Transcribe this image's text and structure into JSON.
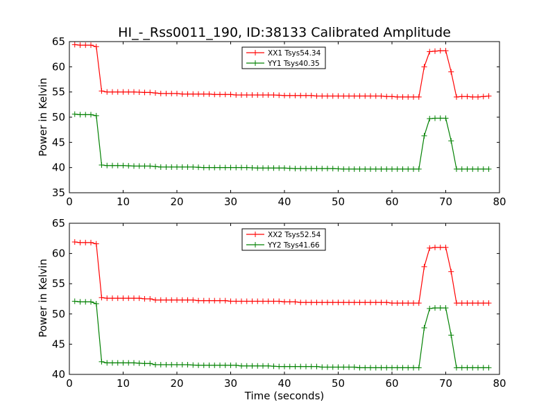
{
  "chart_data": [
    {
      "type": "line",
      "title": "HI_-_Rss0011_190, ID:38133 Calibrated Amplitude",
      "xlabel": "",
      "ylabel": "Power in Kelvin",
      "xlim": [
        0,
        80
      ],
      "ylim": [
        35,
        65
      ],
      "xticks": [
        "0",
        "10",
        "20",
        "30",
        "40",
        "50",
        "60",
        "70",
        "80"
      ],
      "yticks": [
        "35",
        "40",
        "45",
        "50",
        "55",
        "60",
        "65"
      ],
      "legend_position": "top-center",
      "series": [
        {
          "name": "XX1 Tsys54.34",
          "color": "#ff0000",
          "x": [
            1,
            2,
            3,
            4,
            5,
            6,
            7,
            8,
            9,
            10,
            11,
            12,
            13,
            14,
            15,
            16,
            17,
            18,
            19,
            20,
            21,
            22,
            23,
            24,
            25,
            26,
            27,
            28,
            29,
            30,
            31,
            32,
            33,
            34,
            35,
            36,
            37,
            38,
            39,
            40,
            41,
            42,
            43,
            44,
            45,
            46,
            47,
            48,
            49,
            50,
            51,
            52,
            53,
            54,
            55,
            56,
            57,
            58,
            59,
            60,
            61,
            62,
            63,
            64,
            65,
            66,
            67,
            68,
            69,
            70,
            71,
            72,
            73,
            74,
            75,
            76,
            77,
            78
          ],
          "y": [
            64.4,
            64.3,
            64.3,
            64.3,
            64.0,
            55.2,
            55.0,
            55.0,
            55.0,
            55.0,
            55.0,
            55.0,
            54.95,
            54.9,
            54.9,
            54.8,
            54.7,
            54.7,
            54.7,
            54.7,
            54.6,
            54.6,
            54.6,
            54.6,
            54.6,
            54.6,
            54.5,
            54.5,
            54.5,
            54.5,
            54.4,
            54.4,
            54.4,
            54.4,
            54.4,
            54.4,
            54.4,
            54.4,
            54.35,
            54.3,
            54.3,
            54.3,
            54.3,
            54.3,
            54.3,
            54.2,
            54.2,
            54.2,
            54.2,
            54.2,
            54.2,
            54.2,
            54.2,
            54.2,
            54.2,
            54.2,
            54.2,
            54.2,
            54.1,
            54.1,
            54.0,
            54.0,
            54.0,
            54.0,
            54.0,
            60.0,
            63.0,
            63.1,
            63.2,
            63.2,
            59.0,
            54.0,
            54.1,
            54.1,
            54.0,
            54.0,
            54.1,
            54.2
          ]
        },
        {
          "name": "YY1 Tsys40.35",
          "color": "#008000",
          "x": [
            1,
            2,
            3,
            4,
            5,
            6,
            7,
            8,
            9,
            10,
            11,
            12,
            13,
            14,
            15,
            16,
            17,
            18,
            19,
            20,
            21,
            22,
            23,
            24,
            25,
            26,
            27,
            28,
            29,
            30,
            31,
            32,
            33,
            34,
            35,
            36,
            37,
            38,
            39,
            40,
            41,
            42,
            43,
            44,
            45,
            46,
            47,
            48,
            49,
            50,
            51,
            52,
            53,
            54,
            55,
            56,
            57,
            58,
            59,
            60,
            61,
            62,
            63,
            64,
            65,
            66,
            67,
            68,
            69,
            70,
            71,
            72,
            73,
            74,
            75,
            76,
            77,
            78
          ],
          "y": [
            50.6,
            50.5,
            50.5,
            50.5,
            50.3,
            40.5,
            40.4,
            40.4,
            40.4,
            40.4,
            40.35,
            40.3,
            40.3,
            40.3,
            40.3,
            40.2,
            40.1,
            40.1,
            40.1,
            40.1,
            40.1,
            40.1,
            40.1,
            40.05,
            40.0,
            40.0,
            40.0,
            40.0,
            40.0,
            40.0,
            40.0,
            40.0,
            40.0,
            39.95,
            39.9,
            39.9,
            39.9,
            39.9,
            39.9,
            39.9,
            39.85,
            39.8,
            39.8,
            39.8,
            39.8,
            39.8,
            39.8,
            39.8,
            39.8,
            39.75,
            39.7,
            39.7,
            39.7,
            39.7,
            39.7,
            39.7,
            39.7,
            39.7,
            39.7,
            39.7,
            39.7,
            39.7,
            39.7,
            39.7,
            39.7,
            46.3,
            49.7,
            49.8,
            49.8,
            49.8,
            45.3,
            39.7,
            39.7,
            39.7,
            39.7,
            39.7,
            39.7,
            39.7
          ]
        }
      ]
    },
    {
      "type": "line",
      "title": "",
      "xlabel": "Time (seconds)",
      "ylabel": "Power in Kelvin",
      "xlim": [
        0,
        80
      ],
      "ylim": [
        40,
        65
      ],
      "xticks": [
        "0",
        "10",
        "20",
        "30",
        "40",
        "50",
        "60",
        "70",
        "80"
      ],
      "yticks": [
        "40",
        "45",
        "50",
        "55",
        "60",
        "65"
      ],
      "legend_position": "top-center",
      "series": [
        {
          "name": "XX2 Tsys52.54",
          "color": "#ff0000",
          "x": [
            1,
            2,
            3,
            4,
            5,
            6,
            7,
            8,
            9,
            10,
            11,
            12,
            13,
            14,
            15,
            16,
            17,
            18,
            19,
            20,
            21,
            22,
            23,
            24,
            25,
            26,
            27,
            28,
            29,
            30,
            31,
            32,
            33,
            34,
            35,
            36,
            37,
            38,
            39,
            40,
            41,
            42,
            43,
            44,
            45,
            46,
            47,
            48,
            49,
            50,
            51,
            52,
            53,
            54,
            55,
            56,
            57,
            58,
            59,
            60,
            61,
            62,
            63,
            64,
            65,
            66,
            67,
            68,
            69,
            70,
            71,
            72,
            73,
            74,
            75,
            76,
            77,
            78
          ],
          "y": [
            61.9,
            61.8,
            61.8,
            61.8,
            61.6,
            52.7,
            52.6,
            52.6,
            52.6,
            52.6,
            52.6,
            52.6,
            52.6,
            52.5,
            52.5,
            52.3,
            52.3,
            52.3,
            52.3,
            52.3,
            52.3,
            52.3,
            52.3,
            52.2,
            52.2,
            52.2,
            52.2,
            52.2,
            52.2,
            52.1,
            52.1,
            52.1,
            52.1,
            52.1,
            52.1,
            52.1,
            52.1,
            52.1,
            52.1,
            52.0,
            52.0,
            52.0,
            51.9,
            51.9,
            51.9,
            51.9,
            51.9,
            51.9,
            51.9,
            51.9,
            51.9,
            51.9,
            51.9,
            51.9,
            51.9,
            51.9,
            51.9,
            51.9,
            51.9,
            51.8,
            51.8,
            51.8,
            51.8,
            51.8,
            51.8,
            57.8,
            60.9,
            61.0,
            61.0,
            61.0,
            57.0,
            51.8,
            51.8,
            51.8,
            51.8,
            51.8,
            51.8,
            51.8
          ]
        },
        {
          "name": "YY2 Tsys41.66",
          "color": "#008000",
          "x": [
            1,
            2,
            3,
            4,
            5,
            6,
            7,
            8,
            9,
            10,
            11,
            12,
            13,
            14,
            15,
            16,
            17,
            18,
            19,
            20,
            21,
            22,
            23,
            24,
            25,
            26,
            27,
            28,
            29,
            30,
            31,
            32,
            33,
            34,
            35,
            36,
            37,
            38,
            39,
            40,
            41,
            42,
            43,
            44,
            45,
            46,
            47,
            48,
            49,
            50,
            51,
            52,
            53,
            54,
            55,
            56,
            57,
            58,
            59,
            60,
            61,
            62,
            63,
            64,
            65,
            66,
            67,
            68,
            69,
            70,
            71,
            72,
            73,
            74,
            75,
            76,
            77,
            78
          ],
          "y": [
            52.1,
            52.0,
            52.0,
            52.0,
            51.7,
            42.1,
            41.9,
            41.9,
            41.9,
            41.9,
            41.9,
            41.9,
            41.85,
            41.8,
            41.8,
            41.6,
            41.6,
            41.6,
            41.6,
            41.6,
            41.6,
            41.6,
            41.55,
            41.5,
            41.5,
            41.5,
            41.5,
            41.5,
            41.5,
            41.5,
            41.5,
            41.4,
            41.4,
            41.4,
            41.4,
            41.4,
            41.4,
            41.35,
            41.3,
            41.3,
            41.3,
            41.3,
            41.3,
            41.3,
            41.3,
            41.3,
            41.2,
            41.2,
            41.2,
            41.2,
            41.2,
            41.2,
            41.2,
            41.1,
            41.1,
            41.1,
            41.1,
            41.1,
            41.1,
            41.1,
            41.1,
            41.1,
            41.1,
            41.1,
            41.1,
            47.7,
            50.9,
            51.0,
            51.0,
            51.0,
            46.5,
            41.1,
            41.1,
            41.1,
            41.1,
            41.1,
            41.1,
            41.1
          ]
        }
      ]
    }
  ]
}
